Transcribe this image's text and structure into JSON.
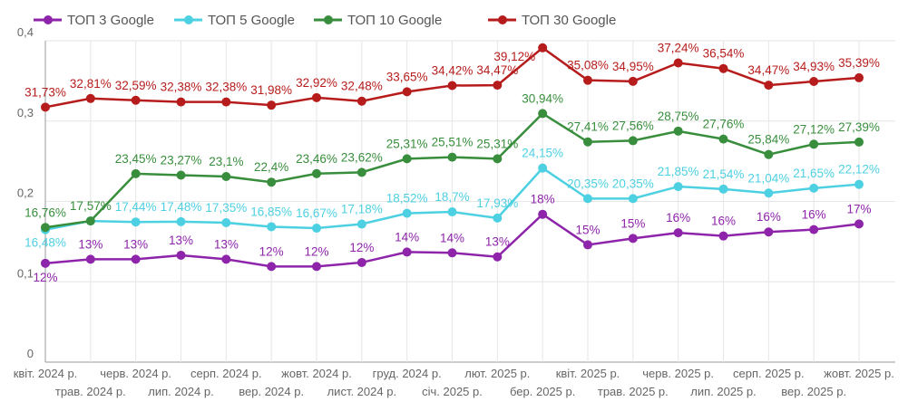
{
  "chart_data": {
    "type": "line",
    "title": "",
    "xlabel": "",
    "ylabel": "",
    "ylim": [
      0,
      0.4
    ],
    "yticks": [
      "0",
      "0,1",
      "0,2",
      "0,3",
      "0,4"
    ],
    "grid": true,
    "legend_position": "top",
    "categories": [
      "квіт. 2024 р.",
      "трав. 2024 р.",
      "черв. 2024 р.",
      "лип. 2024 р.",
      "серп. 2024 р.",
      "вер. 2024 р.",
      "жовт. 2024 р.",
      "лист. 2024 р.",
      "груд. 2024 р.",
      "січ. 2025 р.",
      "лют. 2025 р.",
      "бер. 2025 р.",
      "квіт. 2025 р.",
      "трав. 2025 р.",
      "черв. 2025 р.",
      "лип. 2025 р.",
      "серп. 2025 р.",
      "вер. 2025 р.",
      "жовт. 2025 р."
    ],
    "series": [
      {
        "name": "ТОП 3 Google",
        "color": "#8e24aa",
        "values": [
          12.3,
          12.8,
          12.8,
          13.3,
          12.8,
          11.9,
          11.9,
          12.4,
          13.7,
          13.6,
          13.1,
          18.4,
          14.6,
          15.4,
          16.1,
          15.7,
          16.2,
          16.5,
          17.2
        ],
        "labels": [
          "12%",
          "13%",
          "13%",
          "13%",
          "13%",
          "12%",
          "12%",
          "12%",
          "14%",
          "14%",
          "13%",
          "18%",
          "15%",
          "15%",
          "16%",
          "16%",
          "16%",
          "16%",
          "17%"
        ]
      },
      {
        "name": "ТОП 5 Google",
        "color": "#4dd0e1",
        "values": [
          16.48,
          17.57,
          17.44,
          17.48,
          17.35,
          16.85,
          16.67,
          17.18,
          18.52,
          18.7,
          17.93,
          24.15,
          20.35,
          20.35,
          21.85,
          21.54,
          21.04,
          21.65,
          22.12
        ],
        "labels": [
          "16,48%",
          "",
          "17,44%",
          "17,48%",
          "17,35%",
          "16,85%",
          "16,67%",
          "17,18%",
          "18,52%",
          "18,7%",
          "17,93%",
          "24,15%",
          "20,35%",
          "20,35%",
          "21,85%",
          "21,54%",
          "21,04%",
          "21,65%",
          "22,12%"
        ]
      },
      {
        "name": "ТОП 10 Google",
        "color": "#388e3c",
        "values": [
          16.76,
          17.57,
          23.45,
          23.27,
          23.1,
          22.4,
          23.46,
          23.62,
          25.31,
          25.51,
          25.31,
          30.94,
          27.41,
          27.56,
          28.75,
          27.76,
          25.84,
          27.12,
          27.39
        ],
        "labels": [
          "16,76%",
          "17,57%",
          "23,45%",
          "23,27%",
          "23,1%",
          "22,4%",
          "23,46%",
          "23,62%",
          "25,31%",
          "25,51%",
          "25,31%",
          "30,94%",
          "27,41%",
          "27,56%",
          "28,75%",
          "27,76%",
          "25,84%",
          "27,12%",
          "27,39%"
        ]
      },
      {
        "name": "ТОП 30 Google",
        "color": "#b71c1c",
        "values": [
          31.73,
          32.81,
          32.59,
          32.38,
          32.38,
          31.98,
          32.92,
          32.48,
          33.65,
          34.42,
          34.47,
          39.12,
          35.08,
          34.95,
          37.24,
          36.54,
          34.47,
          34.93,
          35.39
        ],
        "labels": [
          "31,73%",
          "32,81%",
          "32,59%",
          "32,38%",
          "32,38%",
          "31,98%",
          "32,92%",
          "32,48%",
          "33,65%",
          "34,42%",
          "34,47%",
          "39,12%",
          "35,08%",
          "34,95%",
          "37,24%",
          "36,54%",
          "34,47%",
          "34,93%",
          "35,39%"
        ]
      }
    ]
  }
}
